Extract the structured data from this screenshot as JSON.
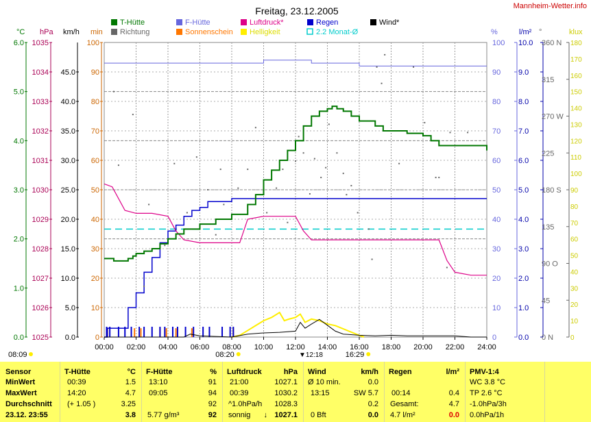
{
  "title": "Freitag, 23.12.2005",
  "site": "Mannheim-Wetter.info",
  "colors": {
    "t_huette": "#007700",
    "f_huette": "#6666dd",
    "luftdruck": "#dd0088",
    "regen": "#0000cc",
    "wind": "#000000",
    "richtung": "#666666",
    "sonnenschein": "#ff7700",
    "helligkeit": "#ffee00",
    "monat": "#00cccc",
    "panel_bg": "#ffff66"
  },
  "legend": [
    {
      "label": "T-Hütte",
      "color": "#007700",
      "style": "solid"
    },
    {
      "label": "Richtung",
      "color": "#666666",
      "style": "solid"
    },
    {
      "label": "F-Hütte",
      "color": "#6666dd",
      "style": "solid"
    },
    {
      "label": "Sonnenschein",
      "color": "#ff7700",
      "style": "solid"
    },
    {
      "label": "Luftdruck*",
      "color": "#dd0088",
      "style": "solid"
    },
    {
      "label": "Helligkeit",
      "color": "#ffee00",
      "style": "solid"
    },
    {
      "label": "Regen",
      "color": "#0000cc",
      "style": "solid"
    },
    {
      "label": "2.2 Monat-Ø",
      "color": "#00cccc",
      "style": "hollow"
    },
    {
      "label": "Wind*",
      "color": "#000000",
      "style": "solid"
    }
  ],
  "axes": {
    "units": [
      "°C",
      "hPa",
      "km/h",
      "min",
      "%",
      "l/m²",
      "°",
      "klux"
    ],
    "temp_c": {
      "ticks": [
        "0.0",
        "1.0",
        "2.0",
        "3.0",
        "4.0",
        "5.0",
        "6.0"
      ],
      "range": [
        0,
        6
      ]
    },
    "pressure_hpa": {
      "ticks": [
        "1025",
        "1026",
        "1027",
        "1028",
        "1029",
        "1030",
        "1031",
        "1032",
        "1033",
        "1034",
        "1035"
      ],
      "range": [
        1025,
        1035
      ]
    },
    "wind_kmh": {
      "ticks": [
        "0.0",
        "5.0",
        "10.0",
        "15.0",
        "20.0",
        "25.0",
        "30.0",
        "35.0",
        "40.0",
        "45.0"
      ],
      "range": [
        0,
        50
      ]
    },
    "sun_min": {
      "ticks": [
        "0",
        "10",
        "20",
        "30",
        "40",
        "50",
        "60",
        "70",
        "80",
        "90",
        "100"
      ],
      "range": [
        0,
        100
      ]
    },
    "humidity_pct": {
      "ticks": [
        "0",
        "10",
        "20",
        "30",
        "40",
        "50",
        "60",
        "70",
        "80",
        "90",
        "100"
      ],
      "range": [
        0,
        100
      ]
    },
    "rain_lm2": {
      "ticks": [
        "0.0",
        "1.0",
        "2.0",
        "3.0",
        "4.0",
        "5.0",
        "6.0",
        "7.0",
        "8.0",
        "9.0",
        "10.0"
      ],
      "range": [
        0,
        10
      ]
    },
    "direction_deg": {
      "ticks": [
        "0 N",
        "45",
        "90 O",
        "135",
        "180 S",
        "225",
        "270 W",
        "315",
        "360 N"
      ],
      "range": [
        0,
        360
      ]
    },
    "light_klux": {
      "ticks": [
        "0",
        "10",
        "20",
        "30",
        "40",
        "50",
        "60",
        "70",
        "80",
        "90",
        "100",
        "110",
        "120",
        "130",
        "140",
        "150",
        "160",
        "170",
        "180"
      ],
      "range": [
        0,
        180
      ]
    },
    "time": {
      "ticks": [
        "00:00",
        "02:00",
        "04:00",
        "06:00",
        "08:00",
        "10:00",
        "12:00",
        "14:00",
        "16:00",
        "18:00",
        "20:00",
        "22:00",
        "24:00"
      ],
      "range": [
        0,
        24
      ]
    }
  },
  "sun_markers": {
    "dawn": "08:09",
    "sunrise": "08:20",
    "noon": "12:18",
    "sunset": "16:29"
  },
  "chart_data": {
    "type": "line",
    "title": "Freitag, 23.12.2005",
    "x_unit": "hours",
    "xlim": [
      0,
      24
    ],
    "grid": true,
    "series": [
      {
        "name": "T-Hütte",
        "unit": "°C",
        "axis": "temp_c",
        "x": [
          0,
          0.6,
          1.0,
          1.5,
          1.8,
          2.0,
          2.5,
          3.0,
          3.5,
          4.0,
          4.5,
          5.0,
          6.0,
          7.0,
          8.0,
          9.0,
          9.5,
          10.0,
          10.5,
          11.0,
          11.5,
          12.0,
          12.5,
          13.0,
          13.5,
          14.0,
          14.3,
          14.6,
          15.0,
          15.5,
          16.0,
          16.5,
          17.0,
          17.5,
          18.0,
          19.0,
          20.0,
          20.5,
          21.0,
          22.0,
          22.5,
          23.0,
          23.8,
          24.0
        ],
        "values": [
          1.6,
          1.55,
          1.55,
          1.6,
          1.65,
          1.7,
          1.75,
          1.8,
          1.9,
          2.0,
          2.1,
          2.2,
          2.3,
          2.4,
          2.5,
          2.7,
          2.9,
          3.2,
          3.4,
          3.6,
          3.8,
          4.0,
          4.3,
          4.5,
          4.6,
          4.65,
          4.7,
          4.65,
          4.6,
          4.5,
          4.4,
          4.4,
          4.3,
          4.2,
          4.2,
          4.15,
          4.1,
          4.0,
          3.9,
          3.9,
          3.9,
          3.9,
          3.9,
          3.8
        ]
      },
      {
        "name": "F-Hütte",
        "unit": "%",
        "axis": "humidity_pct",
        "x": [
          0,
          1,
          2,
          3,
          4,
          5,
          6,
          7,
          8,
          9,
          10,
          11,
          12,
          13,
          14,
          15,
          16,
          17,
          18,
          19,
          20,
          21,
          22,
          23,
          24
        ],
        "values": [
          93,
          93,
          93,
          93,
          93,
          93,
          93,
          93,
          93,
          93,
          94,
          94,
          94,
          93,
          93,
          93,
          92,
          92,
          92,
          92,
          92,
          92,
          92,
          92,
          92
        ]
      },
      {
        "name": "Luftdruck*",
        "unit": "hPa",
        "axis": "pressure_hpa",
        "x": [
          0,
          0.5,
          1,
          1.3,
          2,
          3,
          4,
          4.5,
          5,
          6,
          7,
          8,
          8.5,
          9,
          10,
          11,
          12,
          12.5,
          13,
          14,
          15,
          16,
          17,
          18,
          19,
          20,
          21,
          21.5,
          22,
          23,
          24
        ],
        "values": [
          1030.2,
          1030.1,
          1029.6,
          1029.3,
          1029.2,
          1029.2,
          1029.1,
          1028.6,
          1028.3,
          1028.2,
          1028.2,
          1028.2,
          1028.2,
          1029.0,
          1029.1,
          1029.1,
          1029.1,
          1028.6,
          1028.3,
          1028.3,
          1028.3,
          1028.3,
          1028.3,
          1028.3,
          1028.3,
          1028.3,
          1028.3,
          1027.6,
          1027.2,
          1027.1,
          1027.1
        ]
      },
      {
        "name": "Regen",
        "unit": "l/m²",
        "axis": "rain_lm2",
        "x": [
          0,
          0.2,
          1,
          1.5,
          2,
          2.5,
          3,
          3.5,
          4,
          4.5,
          5,
          5.5,
          6,
          6.5,
          7,
          7.5,
          8,
          9,
          10,
          24
        ],
        "values": [
          0,
          0.3,
          0.3,
          1.0,
          1.5,
          2.2,
          2.7,
          3.2,
          3.6,
          3.8,
          4.1,
          4.3,
          4.4,
          4.6,
          4.6,
          4.6,
          4.7,
          4.7,
          4.7,
          4.7
        ]
      },
      {
        "name": "Helligkeit",
        "unit": "klux",
        "axis": "light_klux",
        "x": [
          8,
          8.5,
          9,
          9.5,
          10,
          10.5,
          11,
          11.3,
          11.6,
          12,
          12.3,
          12.6,
          13,
          13.5,
          14,
          14.5,
          15,
          15.5,
          16,
          16.3
        ],
        "values": [
          0,
          1,
          4,
          7,
          10,
          12,
          15,
          10,
          11,
          12,
          14,
          9,
          11,
          10,
          8,
          7,
          5,
          3,
          1,
          0
        ]
      },
      {
        "name": "Wind*",
        "unit": "km/h",
        "axis": "wind_kmh",
        "x": [
          0,
          5,
          5.4,
          6,
          8,
          9,
          10,
          11,
          12,
          12.3,
          12.6,
          13,
          13.5,
          14,
          14.5,
          15,
          16,
          17,
          18,
          19,
          20,
          21,
          22,
          23,
          24
        ],
        "values": [
          0,
          0,
          0.5,
          0.2,
          0,
          0.5,
          0.7,
          0.8,
          1.0,
          2.5,
          1.5,
          2.2,
          3.0,
          2.0,
          1.0,
          0.5,
          0.3,
          0.2,
          0.3,
          0.2,
          0.2,
          0.2,
          0.2,
          0,
          0
        ]
      },
      {
        "name": "2.2 Monat-Ø",
        "unit": "°C",
        "axis": "temp_c",
        "x": [
          0,
          24
        ],
        "values": [
          2.2,
          2.2
        ]
      }
    ],
    "richtung_points_deg": [
      {
        "x": 0.6,
        "y": 300
      },
      {
        "x": 0.9,
        "y": 210
      },
      {
        "x": 1.8,
        "y": 272
      },
      {
        "x": 2.5,
        "y": 62
      },
      {
        "x": 2.8,
        "y": 162
      },
      {
        "x": 3.8,
        "y": 112
      },
      {
        "x": 4.4,
        "y": 212
      },
      {
        "x": 5.2,
        "y": 152
      },
      {
        "x": 5.8,
        "y": 220
      },
      {
        "x": 6.5,
        "y": 180
      },
      {
        "x": 7.0,
        "y": 125
      },
      {
        "x": 7.3,
        "y": 205
      },
      {
        "x": 7.5,
        "y": 162
      },
      {
        "x": 8.4,
        "y": 182
      },
      {
        "x": 9.0,
        "y": 205
      },
      {
        "x": 9.5,
        "y": 256
      },
      {
        "x": 10.2,
        "y": 152
      },
      {
        "x": 10.8,
        "y": 182
      },
      {
        "x": 11.2,
        "y": 205
      },
      {
        "x": 11.5,
        "y": 140
      },
      {
        "x": 12.0,
        "y": 215
      },
      {
        "x": 12.2,
        "y": 245
      },
      {
        "x": 12.5,
        "y": 225
      },
      {
        "x": 12.9,
        "y": 175
      },
      {
        "x": 13.2,
        "y": 218
      },
      {
        "x": 13.6,
        "y": 195
      },
      {
        "x": 13.9,
        "y": 207
      },
      {
        "x": 14.1,
        "y": 260
      },
      {
        "x": 14.6,
        "y": 225
      },
      {
        "x": 15.0,
        "y": 200
      },
      {
        "x": 15.2,
        "y": 174
      },
      {
        "x": 15.5,
        "y": 185
      },
      {
        "x": 15.9,
        "y": 152
      },
      {
        "x": 16.6,
        "y": 132
      },
      {
        "x": 16.8,
        "y": 95
      },
      {
        "x": 17.1,
        "y": 330
      },
      {
        "x": 17.4,
        "y": 310
      },
      {
        "x": 17.6,
        "y": 345
      },
      {
        "x": 18.5,
        "y": 212
      },
      {
        "x": 19.4,
        "y": 330
      },
      {
        "x": 20.1,
        "y": 262
      },
      {
        "x": 20.8,
        "y": 195
      },
      {
        "x": 21.0,
        "y": 195
      },
      {
        "x": 21.7,
        "y": 250
      },
      {
        "x": 22.8,
        "y": 250
      },
      {
        "x": 21.5,
        "y": 85
      }
    ],
    "sonnenschein_bars_min": [
      {
        "x": 0.2,
        "y": 3
      },
      {
        "x": 1.9,
        "y": 3
      },
      {
        "x": 2.3,
        "y": 3
      },
      {
        "x": 3.5,
        "y": 3
      },
      {
        "x": 3.9,
        "y": 3
      },
      {
        "x": 4.5,
        "y": 3
      },
      {
        "x": 5.5,
        "y": 3
      },
      {
        "x": 8.1,
        "y": 3
      }
    ]
  },
  "panel": {
    "sensor": {
      "header": "Sensor",
      "rows": [
        "MinWert",
        "MaxWert",
        "Durchschnitt",
        "23.12. 23:55"
      ]
    },
    "thuette": {
      "header": "T-Hütte",
      "unit": "°C",
      "min_time": "00:39",
      "min_val": "1.5",
      "max_time": "14:20",
      "max_val": "4.7",
      "avg_note": "(+ 1.05 )",
      "avg_val": "3.25",
      "current": "3.8"
    },
    "fhuette": {
      "header": "F-Hütte",
      "unit": "%",
      "min_time": "13:10",
      "min_val": "91",
      "max_time": "09:05",
      "max_val": "94",
      "avg_val": "92",
      "current_note": "5.77 g/m³",
      "current": "92"
    },
    "luftdruck": {
      "header": "Luftdruck",
      "unit": "hPa",
      "min_time": "21:00",
      "min_val": "1027.1",
      "max_time": "00:39",
      "max_val": "1030.2",
      "avg_note": "^1.0hPa/h",
      "avg_val": "1028.3",
      "current_note": "sonnig",
      "current": "1027.1"
    },
    "wind": {
      "header": "Wind",
      "unit": "km/h",
      "min_time": "Ø 10 min.",
      "min_val": "0.0",
      "max_time": "13:15",
      "max_val": "SW 5.7",
      "avg_val": "0.2",
      "current_note": "0 Bft",
      "current": "0.0"
    },
    "regen": {
      "header": "Regen",
      "unit": "l/m²",
      "max_time": "00:14",
      "max_val": "0.4",
      "avg_note": "Gesamt:",
      "avg_val": "4.7",
      "current_note": "4.7 l/m²",
      "current": "0.0"
    },
    "pmv": {
      "header": "PMV-1:4",
      "wc": "WC 3.8 °C",
      "tp": "TP 2.6 °C",
      "rate": "-1.0hPa/3h",
      "rate2": "0.0hPa/1h"
    }
  }
}
